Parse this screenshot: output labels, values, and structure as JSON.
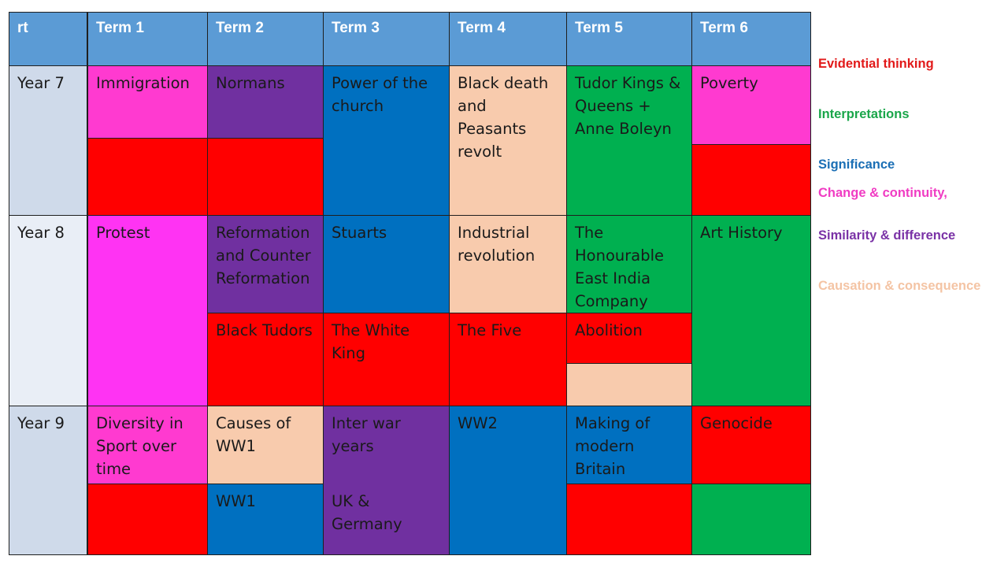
{
  "header": {
    "corner": "rt",
    "terms": [
      "Term 1",
      "Term 2",
      "Term 3",
      "Term 4",
      "Term 5",
      "Term 6"
    ]
  },
  "years": {
    "y7": "Year 7",
    "y8": "Year 8",
    "y9": "Year 9"
  },
  "topics": {
    "y7_t1": "Immigration",
    "y7_t2": "Normans",
    "y7_t3": "Power of the church",
    "y7_t4": "Black death and Peasants revolt",
    "y7_t5": "Tudor Kings & Queens + Anne Boleyn",
    "y7_t6": "Poverty",
    "y8_t1": "Protest",
    "y8_t2": "Reformation and Counter Reformation",
    "y8_t3": "Stuarts",
    "y8_t4": "Industrial revolution",
    "y8_t5": "The Honourable East India Company",
    "y8_t6": "Art History",
    "y8_t2b": "Black Tudors",
    "y8_t3b": "The White King",
    "y8_t4b": "The Five",
    "y8_t5b": "Abolition",
    "y9_t1": "Diversity in Sport over time",
    "y9_t2": "Causes of WW1",
    "y9_t3": "Inter war years",
    "y9_t3b": "UK & Germany",
    "y9_t4": "WW2",
    "y9_t5": "Making of modern Britain",
    "y9_t6": "Genocide",
    "y9_t2b": "WW1"
  },
  "legend": [
    {
      "label": "Evidential  thinking",
      "color": "#e21a1a"
    },
    {
      "label": "Interpretations",
      "color": "#1aa64a"
    },
    {
      "label": "Significance",
      "color": "#1b6fb5"
    },
    {
      "label": "Change & continuity,",
      "color": "#f03cc3"
    },
    {
      "label": "Similarity  & difference",
      "color": "#7a32a6"
    },
    {
      "label": "Causation  & consequence",
      "color": "#f4c4a4"
    }
  ]
}
